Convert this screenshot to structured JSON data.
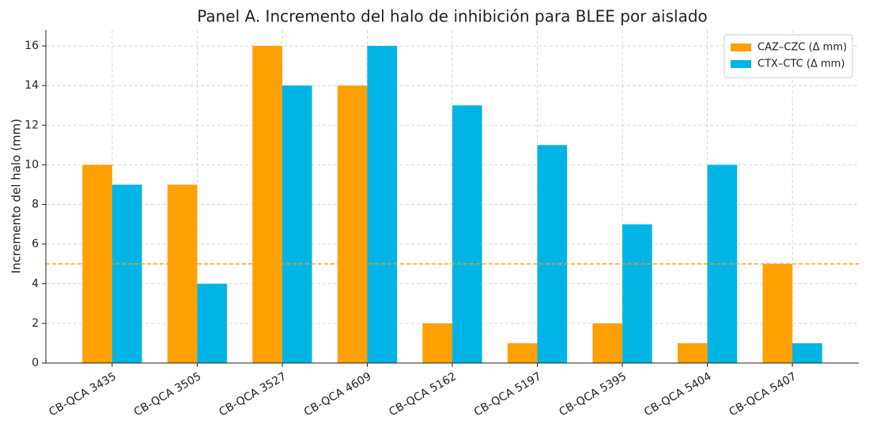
{
  "chart_data": {
    "type": "bar",
    "title": "Panel A. Incremento del halo de inhibición para BLEE por aislado",
    "y_label": "Incremento del halo (mm)",
    "categories": [
      "CB-QCA 3435",
      "CB-QCA 3505",
      "CB-QCA 3527",
      "CB-QCA 4609",
      "CB-QCA 5162",
      "CB-QCA 5197",
      "CB-QCA 5395",
      "CB-QCA 5404",
      "CB-QCA 5407"
    ],
    "series": [
      {
        "name": "CAZ–CZC (Δ mm)",
        "color": "#ffa000",
        "values": [
          10,
          9,
          16,
          14,
          2,
          1,
          2,
          1,
          5
        ]
      },
      {
        "name": "CTX–CTC (Δ mm)",
        "color": "#00b4e6",
        "values": [
          9,
          4,
          14,
          16,
          13,
          11,
          7,
          10,
          1
        ]
      }
    ],
    "ylim": [
      0,
      16.8
    ],
    "yticks": [
      0,
      2,
      4,
      6,
      8,
      10,
      12,
      14,
      16
    ],
    "threshold": 5,
    "threshold_color": "#ffa000",
    "grid": true,
    "legend": "upper-right"
  }
}
